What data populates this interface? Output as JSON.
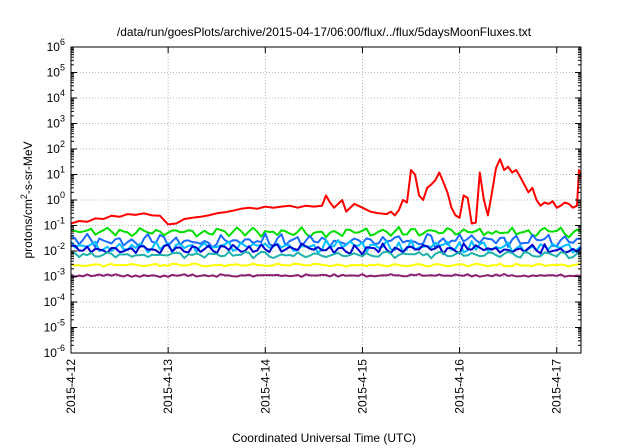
{
  "chart_data": {
    "type": "line",
    "title": "/data/run/goesPlots/archive/2015-04-17/06:00/flux/../flux/5daysMoonFluxes.txt",
    "xlabel": "Coordinated Universal Time (UTC)",
    "ylabel_parts": {
      "pre": "protons/cm",
      "sup": "2",
      "post": "-s-sr-MeV"
    },
    "yscale": "log",
    "ylim_exp": [
      -6,
      6
    ],
    "y_ticks": [
      {
        "base": "10",
        "exp": "-6"
      },
      {
        "base": "10",
        "exp": "-5"
      },
      {
        "base": "10",
        "exp": "-4"
      },
      {
        "base": "10",
        "exp": "-3"
      },
      {
        "base": "10",
        "exp": "-2"
      },
      {
        "base": "10",
        "exp": "-1"
      },
      {
        "base": "10",
        "exp": "0"
      },
      {
        "base": "10",
        "exp": "1"
      },
      {
        "base": "10",
        "exp": "2"
      },
      {
        "base": "10",
        "exp": "3"
      },
      {
        "base": "10",
        "exp": "4"
      },
      {
        "base": "10",
        "exp": "5"
      },
      {
        "base": "10",
        "exp": "6"
      }
    ],
    "x_ticks": [
      "2015-4-12",
      "2015-4-13",
      "2015-4-14",
      "2015-4-15",
      "2015-4-16",
      "2015-4-17"
    ],
    "xlim": [
      "2015-04-12 00:00",
      "2015-04-17 06:00"
    ],
    "grid": true,
    "series": [
      {
        "color": "#ff0000",
        "points": [
          [
            "2015-04-12 00:00",
            0.12
          ],
          [
            "2015-04-12 02:00",
            0.15
          ],
          [
            "2015-04-12 04:00",
            0.14
          ],
          [
            "2015-04-12 06:00",
            0.19
          ],
          [
            "2015-04-12 08:00",
            0.18
          ],
          [
            "2015-04-12 10:00",
            0.24
          ],
          [
            "2015-04-12 12:00",
            0.22
          ],
          [
            "2015-04-12 14:00",
            0.28
          ],
          [
            "2015-04-12 16:00",
            0.26
          ],
          [
            "2015-04-12 18:00",
            0.3
          ],
          [
            "2015-04-12 20:00",
            0.25
          ],
          [
            "2015-04-12 22:00",
            0.24
          ],
          [
            "2015-04-13 00:00",
            0.11
          ],
          [
            "2015-04-13 02:00",
            0.12
          ],
          [
            "2015-04-13 04:00",
            0.18
          ],
          [
            "2015-04-13 06:00",
            0.2
          ],
          [
            "2015-04-13 08:00",
            0.22
          ],
          [
            "2015-04-13 10:00",
            0.25
          ],
          [
            "2015-04-13 12:00",
            0.3
          ],
          [
            "2015-04-13 14:00",
            0.33
          ],
          [
            "2015-04-13 16:00",
            0.38
          ],
          [
            "2015-04-13 18:00",
            0.45
          ],
          [
            "2015-04-13 20:00",
            0.5
          ],
          [
            "2015-04-13 22:00",
            0.45
          ],
          [
            "2015-04-14 00:00",
            0.55
          ],
          [
            "2015-04-14 02:00",
            0.5
          ],
          [
            "2015-04-14 04:00",
            0.55
          ],
          [
            "2015-04-14 06:00",
            0.6
          ],
          [
            "2015-04-14 08:00",
            0.5
          ],
          [
            "2015-04-14 10:00",
            0.6
          ],
          [
            "2015-04-14 12:00",
            0.55
          ],
          [
            "2015-04-14 14:00",
            0.6
          ],
          [
            "2015-04-14 15:00",
            1.5
          ],
          [
            "2015-04-14 16:00",
            0.8
          ],
          [
            "2015-04-14 17:00",
            0.5
          ],
          [
            "2015-04-14 19:00",
            1.0
          ],
          [
            "2015-04-14 20:00",
            0.35
          ],
          [
            "2015-04-14 22:00",
            0.7
          ],
          [
            "2015-04-15 00:00",
            0.5
          ],
          [
            "2015-04-15 02:00",
            0.35
          ],
          [
            "2015-04-15 04:00",
            0.3
          ],
          [
            "2015-04-15 06:00",
            0.28
          ],
          [
            "2015-04-15 07:00",
            0.35
          ],
          [
            "2015-04-15 08:00",
            0.25
          ],
          [
            "2015-04-15 09:00",
            0.4
          ],
          [
            "2015-04-15 10:00",
            1.0
          ],
          [
            "2015-04-15 11:00",
            0.8
          ],
          [
            "2015-04-15 12:00",
            15
          ],
          [
            "2015-04-15 13:00",
            10
          ],
          [
            "2015-04-15 14:00",
            1.5
          ],
          [
            "2015-04-15 15:00",
            1.0
          ],
          [
            "2015-04-15 16:00",
            3
          ],
          [
            "2015-04-15 17:00",
            4
          ],
          [
            "2015-04-15 18:00",
            6
          ],
          [
            "2015-04-15 19:00",
            12
          ],
          [
            "2015-04-15 20:00",
            5
          ],
          [
            "2015-04-15 21:00",
            2
          ],
          [
            "2015-04-15 22:00",
            0.5
          ],
          [
            "2015-04-15 23:00",
            0.25
          ],
          [
            "2015-04-16 00:00",
            0.2
          ],
          [
            "2015-04-16 01:00",
            1.5
          ],
          [
            "2015-04-16 02:00",
            1.2
          ],
          [
            "2015-04-16 03:00",
            0.12
          ],
          [
            "2015-04-16 04:00",
            0.13
          ],
          [
            "2015-04-16 05:00",
            12
          ],
          [
            "2015-04-16 06:00",
            1.0
          ],
          [
            "2015-04-16 07:00",
            0.25
          ],
          [
            "2015-04-16 08:00",
            2
          ],
          [
            "2015-04-16 09:00",
            18
          ],
          [
            "2015-04-16 10:00",
            40
          ],
          [
            "2015-04-16 11:00",
            15
          ],
          [
            "2015-04-16 12:00",
            20
          ],
          [
            "2015-04-16 13:00",
            12
          ],
          [
            "2015-04-16 14:00",
            15
          ],
          [
            "2015-04-16 15:00",
            8
          ],
          [
            "2015-04-16 16:00",
            4
          ],
          [
            "2015-04-16 17:00",
            2
          ],
          [
            "2015-04-16 18:00",
            3
          ],
          [
            "2015-04-16 19:00",
            1
          ],
          [
            "2015-04-16 20:00",
            0.6
          ],
          [
            "2015-04-16 21:00",
            0.8
          ],
          [
            "2015-04-16 22:00",
            0.7
          ],
          [
            "2015-04-16 23:00",
            0.9
          ],
          [
            "2015-04-17 00:00",
            0.5
          ],
          [
            "2015-04-17 01:00",
            0.6
          ],
          [
            "2015-04-17 02:00",
            0.8
          ],
          [
            "2015-04-17 03:00",
            0.7
          ],
          [
            "2015-04-17 04:00",
            0.5
          ],
          [
            "2015-04-17 05:00",
            0.6
          ],
          [
            "2015-04-17 05:30",
            15
          ],
          [
            "2015-04-17 06:00",
            8
          ]
        ]
      },
      {
        "color": "#00e000",
        "base": 0.055,
        "amp": 1.45,
        "period": 12,
        "phase": 0.3
      },
      {
        "color": "#1a6bff",
        "base": 0.025,
        "amp": 1.7,
        "period": 11,
        "phase": 1.1
      },
      {
        "color": "#00bfff",
        "base": 0.015,
        "amp": 1.6,
        "period": 9,
        "phase": 2.0
      },
      {
        "color": "#0000cd",
        "base": 0.012,
        "amp": 1.5,
        "period": 10,
        "phase": 0.7
      },
      {
        "color": "#20b2aa",
        "base": 0.007,
        "amp": 1.3,
        "period": 13,
        "phase": 1.6
      },
      {
        "color": "#ffff00",
        "base": 0.0028,
        "amp": 1.12,
        "period": 15,
        "phase": 0.9
      },
      {
        "color": "#8b2070",
        "base": 0.0011,
        "amp": 1.12,
        "period": 7,
        "phase": 2.4
      }
    ]
  }
}
